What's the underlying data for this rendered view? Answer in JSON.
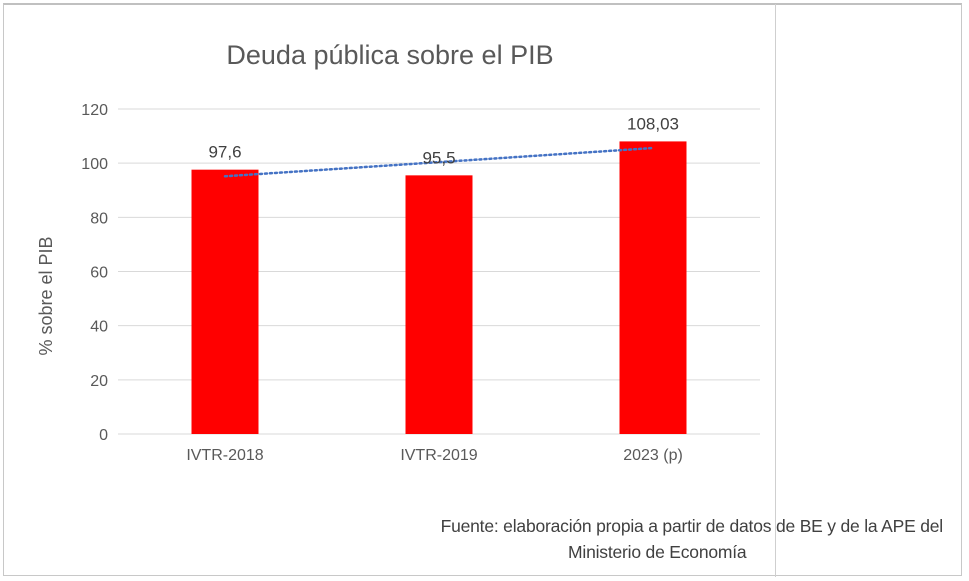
{
  "chart_data": {
    "type": "bar",
    "title": "Deuda pública sobre el PIB",
    "xlabel": "",
    "ylabel": "% sobre el PIB",
    "categories": [
      "IVTR-2018",
      "IVTR-2019",
      "2023 (p)"
    ],
    "values": [
      97.6,
      95.5,
      108.03
    ],
    "data_labels": [
      "97,6",
      "95,5",
      "108,03"
    ],
    "ylim": [
      0,
      120
    ],
    "yticks": [
      0,
      20,
      40,
      60,
      80,
      100,
      120
    ],
    "grid": true,
    "trendline": {
      "type": "linear",
      "style": "dotted"
    },
    "colors": {
      "bar": "#ff0000",
      "trendline": "#4472c4",
      "grid": "#d9d9d9",
      "text": "#404040"
    }
  },
  "source": {
    "line1": "Fuente: elaboración propia a partir de datos de BE y de la APE del",
    "line2": "Ministerio de Economía"
  }
}
